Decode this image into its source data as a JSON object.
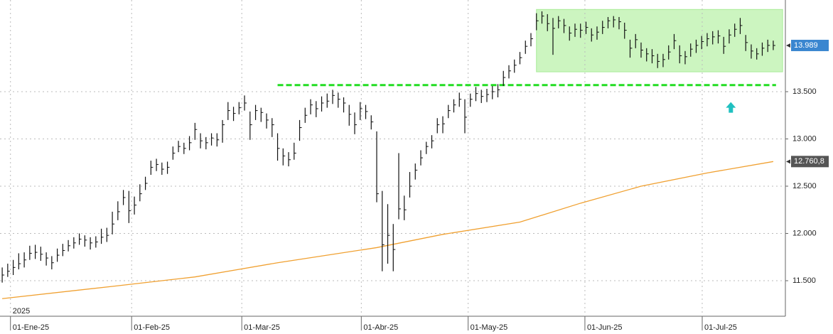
{
  "chart_data": {
    "type": "ohlc",
    "bar_color": "#111111",
    "xlim": [
      -0.4,
      142.2
    ],
    "ylim": [
      11124,
      14470
    ],
    "grid": true,
    "year_label": "2025",
    "xticks": [
      {
        "value": 1.5,
        "label": "01-Ene-25"
      },
      {
        "value": 23.5,
        "label": "01-Feb-25"
      },
      {
        "value": 43.5,
        "label": "01-Mar-25"
      },
      {
        "value": 65.2,
        "label": "01-Abr-25"
      },
      {
        "value": 84.6,
        "label": "01-May-25"
      },
      {
        "value": 105.8,
        "label": "01-Jun-25"
      },
      {
        "value": 127.1,
        "label": "01-Jul-25"
      }
    ],
    "yticks": [
      {
        "value": 11500,
        "label": "11.500"
      },
      {
        "value": 12000,
        "label": "12.000"
      },
      {
        "value": 12500,
        "label": "12.500"
      },
      {
        "value": 13000,
        "label": "13.000"
      },
      {
        "value": 13500,
        "label": "13.500"
      }
    ],
    "high": [
      11640,
      11680,
      11720,
      11790,
      11800,
      11870,
      11880,
      11860,
      11800,
      11760,
      11840,
      11890,
      11930,
      11960,
      12000,
      11980,
      11960,
      11970,
      12050,
      12060,
      12230,
      12340,
      12460,
      12450,
      12390,
      12520,
      12600,
      12770,
      12790,
      12750,
      12760,
      12920,
      12980,
      12960,
      13030,
      13170,
      13060,
      13020,
      13060,
      13060,
      13200,
      13390,
      13340,
      13390,
      13460,
      13290,
      13360,
      13330,
      13270,
      13220,
      13060,
      12900,
      12860,
      12960,
      13200,
      13330,
      13420,
      13400,
      13450,
      13480,
      13520,
      13490,
      13440,
      13360,
      13280,
      13390,
      13360,
      13250,
      13080,
      12450,
      12310,
      12100,
      12850,
      12400,
      12650,
      12740,
      12880,
      12970,
      13040,
      13220,
      13240,
      13360,
      13420,
      13490,
      13420,
      13480,
      13550,
      13520,
      13530,
      13560,
      13580,
      13720,
      13780,
      13840,
      13920,
      14040,
      14120,
      14330,
      14350,
      14320,
      14280,
      14300,
      14270,
      14190,
      14220,
      14220,
      14240,
      14170,
      14190,
      14250,
      14290,
      14300,
      14290,
      14230,
      14050,
      14110,
      14020,
      13960,
      13950,
      13900,
      13900,
      13990,
      14110,
      13990,
      13930,
      14010,
      14050,
      14090,
      14120,
      14140,
      14150,
      14080,
      14160,
      14220,
      14280,
      14100,
      14000,
      13960,
      14020,
      14050,
      14040
    ],
    "low": [
      11480,
      11540,
      11560,
      11620,
      11640,
      11720,
      11730,
      11710,
      11660,
      11620,
      11700,
      11760,
      11810,
      11840,
      11880,
      11860,
      11830,
      11850,
      11890,
      11910,
      11990,
      12140,
      12300,
      12110,
      12200,
      12340,
      12460,
      12620,
      12660,
      12620,
      12630,
      12780,
      12860,
      12840,
      12880,
      12990,
      12900,
      12890,
      12930,
      12920,
      12960,
      13200,
      13190,
      13260,
      13300,
      12990,
      13200,
      13180,
      13110,
      13020,
      12770,
      12720,
      12710,
      12780,
      12980,
      13170,
      13260,
      13230,
      13290,
      13330,
      13370,
      13330,
      13280,
      13140,
      13050,
      13200,
      13210,
      13100,
      12330,
      11600,
      11680,
      11600,
      12150,
      12140,
      12380,
      12570,
      12720,
      12840,
      12900,
      13060,
      13060,
      13220,
      13280,
      13340,
      13060,
      13340,
      13400,
      13380,
      13390,
      13420,
      13440,
      13560,
      13640,
      13700,
      13790,
      13900,
      13980,
      14150,
      14220,
      14140,
      13890,
      14170,
      14120,
      14040,
      14080,
      14070,
      14110,
      14030,
      14050,
      14110,
      14170,
      14180,
      14160,
      14060,
      13860,
      13960,
      13860,
      13820,
      13800,
      13750,
      13760,
      13840,
      13950,
      13800,
      13790,
      13870,
      13910,
      13950,
      13980,
      14000,
      14010,
      13900,
      14010,
      14080,
      14110,
      13930,
      13850,
      13840,
      13880,
      13920,
      13940
    ],
    "close": [
      11560,
      11600,
      11640,
      11680,
      11720,
      11790,
      11800,
      11780,
      11740,
      11690,
      11770,
      11820,
      11870,
      11900,
      11940,
      11930,
      11900,
      11910,
      11960,
      11980,
      12100,
      12230,
      12380,
      12240,
      12300,
      12420,
      12530,
      12700,
      12730,
      12680,
      12700,
      12850,
      12920,
      12900,
      12960,
      13100,
      12980,
      12960,
      13010,
      12990,
      13150,
      13300,
      13270,
      13330,
      13380,
      13150,
      13300,
      13280,
      13200,
      13150,
      12900,
      12820,
      12780,
      12850,
      13120,
      13250,
      13360,
      13320,
      13380,
      13400,
      13460,
      13420,
      13380,
      13260,
      13150,
      13320,
      13290,
      13180,
      12420,
      11880,
      11980,
      11830,
      12260,
      12250,
      12500,
      12670,
      12800,
      12920,
      12980,
      13150,
      13160,
      13300,
      13360,
      13420,
      13230,
      13420,
      13480,
      13450,
      13470,
      13500,
      13520,
      13650,
      13720,
      13780,
      13860,
      13980,
      14060,
      14250,
      14300,
      14220,
      14170,
      14250,
      14200,
      14120,
      14160,
      14150,
      14180,
      14100,
      14130,
      14180,
      14250,
      14260,
      14240,
      14150,
      13960,
      14050,
      13940,
      13900,
      13880,
      13820,
      13840,
      13920,
      14040,
      13880,
      13870,
      13950,
      13990,
      14030,
      14060,
      14080,
      14090,
      13980,
      14100,
      14160,
      14200,
      14020,
      13930,
      13900,
      13960,
      13990,
      13989
    ],
    "moving_average": {
      "color": "#f0a030",
      "x": [
        0,
        20,
        35,
        50,
        68,
        80,
        94,
        105,
        116,
        128,
        140
      ],
      "values": [
        11310,
        11440,
        11540,
        11690,
        11850,
        11990,
        12120,
        12320,
        12500,
        12640,
        12760.8
      ]
    },
    "price_labels": [
      {
        "value": 13989,
        "label": "13.989",
        "color": "#3a86d0"
      },
      {
        "value": 12760.8,
        "label": "12.760,8",
        "color": "#555555"
      }
    ],
    "support_line": {
      "value": 13570,
      "xlim": [
        50,
        140.5
      ],
      "color": "#22dd22"
    },
    "range_box": {
      "xlim": [
        97,
        141.7
      ],
      "ylim": [
        13710,
        14370
      ],
      "color": "#ccf5c0"
    },
    "arrow": {
      "x": 132.3,
      "value": 13330,
      "color": "#20c0c0"
    }
  }
}
